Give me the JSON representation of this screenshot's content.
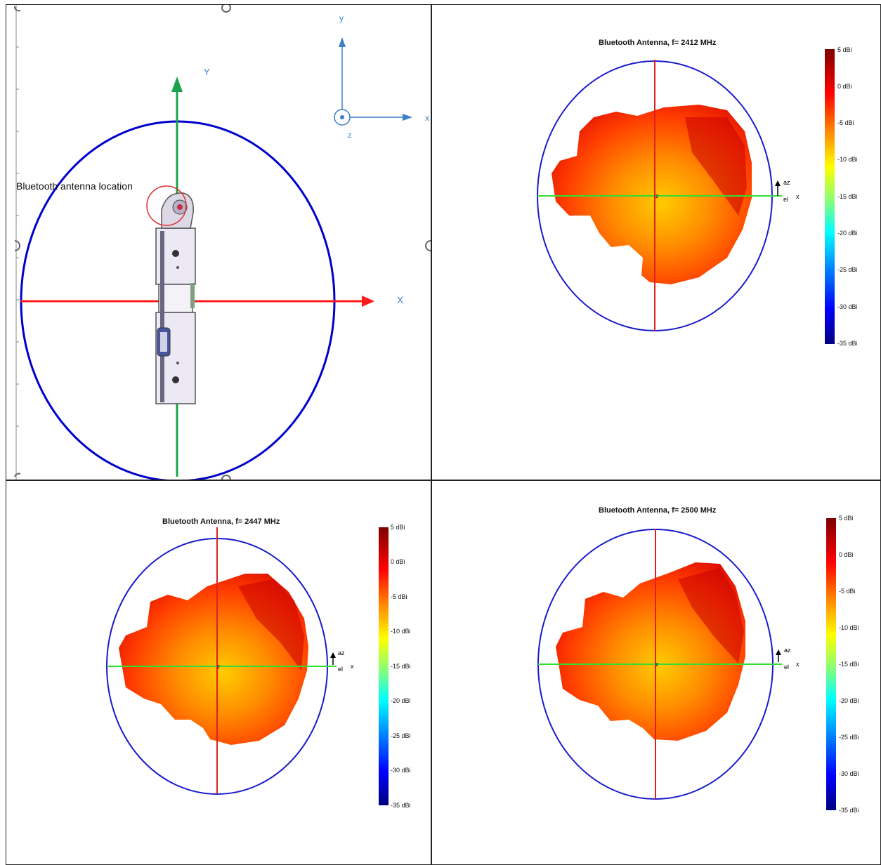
{
  "panel_layout": {
    "label": "Bluetooth antenna location",
    "axis_x_big": "X",
    "axis_y_big": "Y",
    "axis_x_small": "x",
    "axis_y_small": "y",
    "axis_z_small": "z",
    "colors": {
      "circle": "#0000cc",
      "x_axis": "#ff1a1a",
      "y_axis": "#1aa34a",
      "marker": "#e03030"
    }
  },
  "patterns": [
    {
      "title": "Bluetooth Antenna, f= 2412 MHz"
    },
    {
      "title": "Bluetooth Antenna, f= 2447 MHz"
    },
    {
      "title": "Bluetooth Antenna, f= 2500 MHz"
    }
  ],
  "pattern_axis_labels": {
    "az": "az",
    "el": "el",
    "x": "x",
    "z": "z"
  },
  "colorbar": {
    "ticks": [
      "5 dBi",
      "0 dBi",
      "-5 dBi",
      "-10 dBi",
      "-15 dBi",
      "-20 dBi",
      "-25 dBi",
      "-30 dBi",
      "-35 dBi"
    ]
  }
}
